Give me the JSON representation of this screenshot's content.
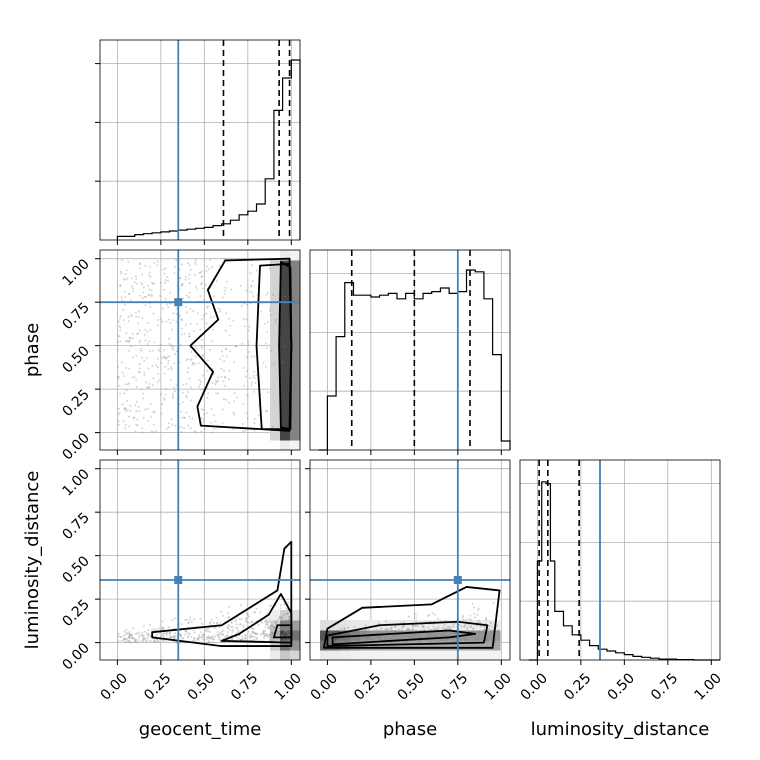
{
  "chart_data": {
    "type": "corner",
    "parameters": [
      "geocent_time",
      "phase",
      "luminosity_distance"
    ],
    "truths": [
      0.35,
      0.75,
      0.36
    ],
    "truth_color": "#4682b4",
    "axis_range": [
      -0.1,
      1.05
    ],
    "tick_labels": [
      "0.00",
      "0.25",
      "0.50",
      "0.75",
      "1.00"
    ],
    "grid": true,
    "histograms": [
      {
        "parameter": "geocent_time",
        "bin_edges": [
          0.0,
          0.05,
          0.1,
          0.15,
          0.2,
          0.25,
          0.3,
          0.35,
          0.4,
          0.45,
          0.5,
          0.55,
          0.6,
          0.65,
          0.7,
          0.75,
          0.8,
          0.85,
          0.9,
          0.95,
          1.0,
          1.05
        ],
        "counts": [
          0.02,
          0.02,
          0.03,
          0.035,
          0.04,
          0.045,
          0.05,
          0.055,
          0.06,
          0.065,
          0.07,
          0.08,
          0.09,
          0.11,
          0.14,
          0.16,
          0.2,
          0.34,
          0.72,
          0.9,
          1.0
        ],
        "quantiles": [
          0.61,
          0.93,
          0.99
        ]
      },
      {
        "parameter": "phase",
        "bin_edges": [
          -0.05,
          0.0,
          0.05,
          0.1,
          0.15,
          0.2,
          0.25,
          0.3,
          0.35,
          0.4,
          0.45,
          0.5,
          0.55,
          0.6,
          0.65,
          0.7,
          0.75,
          0.8,
          0.85,
          0.9,
          0.95,
          1.0,
          1.05
        ],
        "counts": [
          0.0,
          0.3,
          0.63,
          0.93,
          0.86,
          0.86,
          0.85,
          0.86,
          0.87,
          0.84,
          0.87,
          0.84,
          0.87,
          0.88,
          0.9,
          0.87,
          0.88,
          1.0,
          0.99,
          0.84,
          0.53,
          0.05
        ],
        "quantiles": [
          0.14,
          0.5,
          0.82
        ]
      },
      {
        "parameter": "luminosity_distance",
        "bin_edges": [
          -0.05,
          0.0,
          0.025,
          0.05,
          0.075,
          0.1,
          0.15,
          0.2,
          0.25,
          0.3,
          0.35,
          0.4,
          0.45,
          0.5,
          0.55,
          0.6,
          0.65,
          0.7,
          0.8,
          0.9,
          1.0,
          1.05
        ],
        "counts": [
          0.0,
          0.55,
          0.99,
          0.98,
          0.55,
          0.27,
          0.19,
          0.14,
          0.11,
          0.08,
          0.06,
          0.05,
          0.04,
          0.03,
          0.02,
          0.015,
          0.01,
          0.005,
          0.002,
          0.0,
          0.0
        ],
        "quantiles": [
          0.01,
          0.06,
          0.24
        ]
      }
    ],
    "contours": [
      {
        "x": "geocent_time",
        "y": "phase",
        "levels": [
          [
            [
              0.94,
              0.03
            ],
            [
              0.995,
              0.02
            ],
            [
              1.0,
              0.5
            ],
            [
              0.995,
              0.95
            ],
            [
              0.94,
              0.98
            ],
            [
              0.93,
              0.5
            ]
          ],
          [
            [
              0.83,
              0.02
            ],
            [
              0.99,
              0.02
            ],
            [
              1.0,
              0.5
            ],
            [
              0.99,
              0.97
            ],
            [
              0.82,
              0.96
            ],
            [
              0.8,
              0.5
            ]
          ],
          [
            [
              0.48,
              0.04
            ],
            [
              0.99,
              0.01
            ],
            [
              1.0,
              0.5
            ],
            [
              0.99,
              1.0
            ],
            [
              0.62,
              0.99
            ],
            [
              0.52,
              0.82
            ],
            [
              0.58,
              0.65
            ],
            [
              0.42,
              0.5
            ],
            [
              0.55,
              0.35
            ],
            [
              0.46,
              0.15
            ]
          ]
        ]
      },
      {
        "x": "geocent_time",
        "y": "luminosity_distance",
        "levels": [
          [
            [
              0.9,
              0.03
            ],
            [
              1.0,
              0.03
            ],
            [
              1.0,
              0.1
            ],
            [
              0.92,
              0.1
            ]
          ],
          [
            [
              0.6,
              0.01
            ],
            [
              1.0,
              0.0
            ],
            [
              1.0,
              0.17
            ],
            [
              0.94,
              0.28
            ],
            [
              0.87,
              0.16
            ],
            [
              0.7,
              0.05
            ]
          ],
          [
            [
              0.2,
              0.03
            ],
            [
              0.6,
              -0.02
            ],
            [
              1.0,
              -0.02
            ],
            [
              1.0,
              0.58
            ],
            [
              0.96,
              0.54
            ],
            [
              0.92,
              0.3
            ],
            [
              0.6,
              0.1
            ],
            [
              0.2,
              0.06
            ]
          ]
        ]
      },
      {
        "x": "phase",
        "y": "luminosity_distance",
        "levels": [
          [
            [
              0.03,
              -0.01
            ],
            [
              0.7,
              0.03
            ],
            [
              0.85,
              0.05
            ],
            [
              0.7,
              0.07
            ],
            [
              0.03,
              0.03
            ]
          ],
          [
            [
              0.0,
              -0.02
            ],
            [
              0.9,
              0.0
            ],
            [
              0.92,
              0.1
            ],
            [
              0.75,
              0.12
            ],
            [
              0.3,
              0.1
            ],
            [
              0.0,
              0.04
            ]
          ],
          [
            [
              -0.02,
              -0.03
            ],
            [
              0.95,
              -0.03
            ],
            [
              0.99,
              0.3
            ],
            [
              0.8,
              0.32
            ],
            [
              0.6,
              0.22
            ],
            [
              0.2,
              0.2
            ],
            [
              0.0,
              0.08
            ]
          ]
        ]
      }
    ]
  }
}
